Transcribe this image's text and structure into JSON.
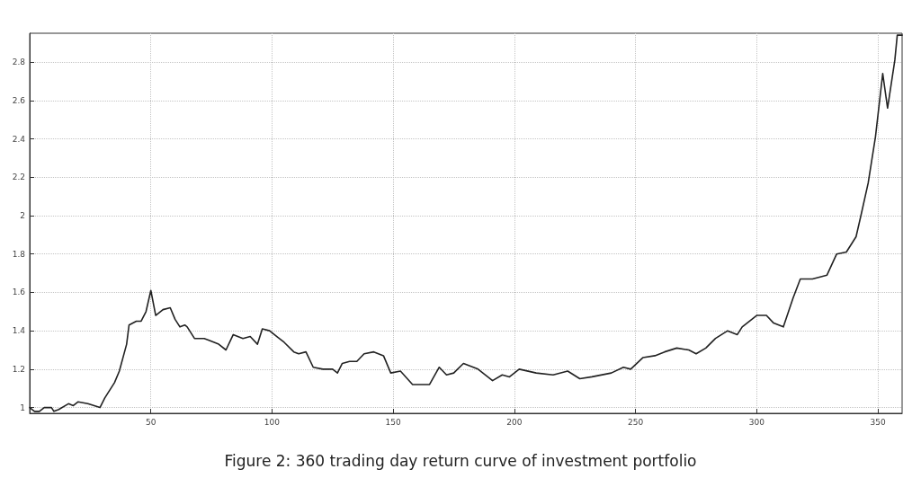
{
  "chart_data": {
    "type": "line",
    "title": "Figure 2: 360 trading day return curve of investment portfolio",
    "x": [
      0,
      2,
      4,
      6,
      9,
      10,
      12,
      16,
      18,
      20,
      24,
      29,
      31,
      35,
      37,
      40,
      41,
      44,
      46,
      48,
      50,
      52,
      55,
      58,
      60,
      62,
      64,
      65,
      68,
      72,
      74,
      78,
      81,
      84,
      88,
      91,
      94,
      96,
      99,
      102,
      105,
      109,
      111,
      114,
      117,
      121,
      125,
      127,
      129,
      132,
      135,
      138,
      142,
      146,
      149,
      153,
      158,
      161,
      165,
      169,
      172,
      175,
      179,
      185,
      191,
      195,
      198,
      202,
      209,
      216,
      222,
      227,
      232,
      240,
      245,
      248,
      253,
      258,
      262,
      267,
      272,
      275,
      279,
      283,
      288,
      292,
      294,
      300,
      304,
      307,
      311,
      315,
      318,
      323,
      329,
      333,
      337,
      341,
      343,
      346,
      349,
      352,
      354,
      357,
      358,
      360
    ],
    "series": [
      {
        "color": "#222222",
        "values": [
          1.0,
          0.98,
          0.98,
          1.0,
          1.0,
          0.98,
          0.99,
          1.02,
          1.01,
          1.03,
          1.02,
          1.0,
          1.05,
          1.13,
          1.19,
          1.33,
          1.43,
          1.45,
          1.45,
          1.5,
          1.61,
          1.48,
          1.51,
          1.52,
          1.46,
          1.42,
          1.43,
          1.42,
          1.36,
          1.36,
          1.35,
          1.33,
          1.3,
          1.38,
          1.36,
          1.37,
          1.33,
          1.41,
          1.4,
          1.37,
          1.34,
          1.29,
          1.28,
          1.29,
          1.21,
          1.2,
          1.2,
          1.18,
          1.23,
          1.24,
          1.24,
          1.28,
          1.29,
          1.27,
          1.18,
          1.19,
          1.12,
          1.12,
          1.12,
          1.21,
          1.17,
          1.18,
          1.23,
          1.2,
          1.14,
          1.17,
          1.16,
          1.2,
          1.18,
          1.17,
          1.19,
          1.15,
          1.16,
          1.18,
          1.21,
          1.2,
          1.26,
          1.27,
          1.29,
          1.31,
          1.3,
          1.28,
          1.31,
          1.36,
          1.4,
          1.38,
          1.42,
          1.48,
          1.48,
          1.44,
          1.42,
          1.57,
          1.67,
          1.67,
          1.69,
          1.8,
          1.81,
          1.89,
          2.0,
          2.17,
          2.41,
          2.74,
          2.56,
          2.81,
          2.94,
          2.94
        ]
      }
    ],
    "xlim": [
      0,
      360
    ],
    "xticks": [
      50,
      100,
      150,
      200,
      250,
      300,
      350
    ],
    "ylim": [
      0.97,
      2.95
    ],
    "yticks": [
      1,
      1.2,
      1.4,
      1.6,
      1.8,
      2,
      2.2,
      2.4,
      2.6,
      2.8
    ],
    "grid": true,
    "marker": "none",
    "line_style": "solid"
  }
}
